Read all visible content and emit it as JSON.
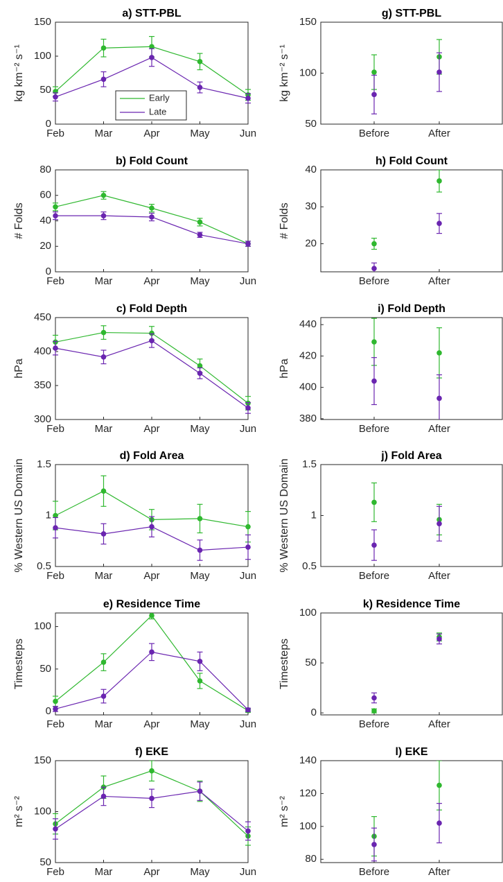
{
  "chart_data": [
    {
      "type": "line",
      "title": "a) STT-PBL",
      "ylabel": "kg km⁻² s⁻¹",
      "categories": [
        "Feb",
        "Mar",
        "Apr",
        "May",
        "Jun"
      ],
      "ylim": [
        0,
        150
      ],
      "yticks": [
        0,
        50,
        100,
        150
      ],
      "legend": "bottom",
      "series": [
        {
          "name": "Early",
          "color": "#2fb82f",
          "values": [
            48,
            112,
            114,
            92,
            43
          ],
          "errors": [
            7,
            13,
            15,
            12,
            8
          ]
        },
        {
          "name": "Late",
          "color": "#6a25b0",
          "values": [
            40,
            66,
            98,
            54,
            38
          ],
          "errors": [
            6,
            11,
            13,
            8,
            7
          ]
        }
      ]
    },
    {
      "type": "line",
      "title": "b) Fold Count",
      "ylabel": "# Folds",
      "categories": [
        "Feb",
        "Mar",
        "Apr",
        "May",
        "Jun"
      ],
      "ylim": [
        0,
        80
      ],
      "yticks": [
        0,
        20,
        40,
        60,
        80
      ],
      "series": [
        {
          "color": "#2fb82f",
          "values": [
            51,
            60,
            50,
            39,
            22
          ],
          "errors": [
            3,
            3,
            3,
            3,
            2
          ]
        },
        {
          "color": "#6a25b0",
          "values": [
            44,
            44,
            43,
            29,
            22
          ],
          "errors": [
            3,
            3,
            3,
            2,
            2
          ]
        }
      ]
    },
    {
      "type": "line",
      "title": "c) Fold Depth",
      "ylabel": "hPa",
      "categories": [
        "Feb",
        "Mar",
        "Apr",
        "May",
        "Jun"
      ],
      "ylim": [
        300,
        450
      ],
      "yticks": [
        300,
        350,
        400,
        450
      ],
      "series": [
        {
          "color": "#2fb82f",
          "values": [
            414,
            428,
            427,
            379,
            324
          ],
          "errors": [
            10,
            10,
            10,
            10,
            10
          ]
        },
        {
          "color": "#6a25b0",
          "values": [
            405,
            392,
            416,
            368,
            317
          ],
          "errors": [
            10,
            10,
            10,
            8,
            8
          ]
        }
      ]
    },
    {
      "type": "line",
      "title": "d) Fold Area",
      "ylabel": "% Western US Domain",
      "categories": [
        "Feb",
        "Mar",
        "Apr",
        "May",
        "Jun"
      ],
      "ylim": [
        0.5,
        1.5
      ],
      "yticks": [
        0.5,
        1,
        1.5
      ],
      "series": [
        {
          "color": "#2fb82f",
          "values": [
            1.0,
            1.24,
            0.96,
            0.97,
            0.89
          ],
          "errors": [
            0.14,
            0.15,
            0.1,
            0.14,
            0.15
          ]
        },
        {
          "color": "#6a25b0",
          "values": [
            0.88,
            0.82,
            0.89,
            0.66,
            0.69
          ],
          "errors": [
            0.1,
            0.1,
            0.1,
            0.1,
            0.12
          ]
        }
      ]
    },
    {
      "type": "line",
      "title": "e) Residence Time",
      "ylabel": "Timesteps",
      "categories": [
        "Feb",
        "Mar",
        "Apr",
        "May",
        "Jun"
      ],
      "ylim": [
        -4,
        116
      ],
      "yticks": [
        0,
        50,
        100
      ],
      "series": [
        {
          "color": "#2fb82f",
          "values": [
            12,
            58,
            113,
            36,
            1
          ],
          "errors": [
            6,
            10,
            4,
            9,
            2
          ]
        },
        {
          "color": "#6a25b0",
          "values": [
            3,
            18,
            70,
            59,
            2
          ],
          "errors": [
            3,
            8,
            10,
            11,
            2
          ]
        }
      ]
    },
    {
      "type": "line",
      "title": "f) EKE",
      "ylabel": "m² s⁻²",
      "categories": [
        "Feb",
        "Mar",
        "Apr",
        "May",
        "Jun"
      ],
      "ylim": [
        50,
        150
      ],
      "yticks": [
        50,
        100,
        150
      ],
      "series": [
        {
          "color": "#2fb82f",
          "values": [
            88,
            124,
            140,
            120,
            76
          ],
          "errors": [
            10,
            11,
            10,
            10,
            9
          ]
        },
        {
          "color": "#6a25b0",
          "values": [
            83,
            115,
            113,
            120,
            81
          ],
          "errors": [
            10,
            9,
            9,
            9,
            9
          ]
        }
      ]
    },
    {
      "type": "errorbar",
      "title": "g) STT-PBL",
      "ylabel": "kg km⁻² s⁻¹",
      "categories": [
        "Before",
        "After"
      ],
      "ylim": [
        50,
        150
      ],
      "yticks": [
        50,
        100,
        150
      ],
      "series": [
        {
          "color": "#2fb82f",
          "values": [
            101,
            116
          ],
          "errors": [
            17,
            17
          ]
        },
        {
          "color": "#6a25b0",
          "values": [
            79,
            101
          ],
          "errors": [
            19,
            19
          ]
        }
      ]
    },
    {
      "type": "errorbar",
      "title": "h) Fold Count",
      "ylabel": "# Folds",
      "categories": [
        "Before",
        "After"
      ],
      "ylim": [
        12.4,
        40
      ],
      "yticks": [
        20,
        30,
        40
      ],
      "series": [
        {
          "color": "#2fb82f",
          "values": [
            20,
            37
          ],
          "errors": [
            1.5,
            3
          ]
        },
        {
          "color": "#6a25b0",
          "values": [
            13.3,
            25.5
          ],
          "errors": [
            1.5,
            2.7
          ]
        }
      ]
    },
    {
      "type": "errorbar",
      "title": "i) Fold Depth",
      "ylabel": "hPa",
      "categories": [
        "Before",
        "After"
      ],
      "ylim": [
        379.5,
        444.5
      ],
      "yticks": [
        380,
        400,
        420,
        440
      ],
      "series": [
        {
          "color": "#2fb82f",
          "values": [
            429,
            422
          ],
          "errors": [
            15,
            16
          ]
        },
        {
          "color": "#6a25b0",
          "values": [
            404,
            393
          ],
          "errors": [
            15,
            15
          ]
        }
      ]
    },
    {
      "type": "errorbar",
      "title": "j) Fold Area",
      "ylabel": "% Western US Domain",
      "categories": [
        "Before",
        "After"
      ],
      "ylim": [
        0.5,
        1.5
      ],
      "yticks": [
        0.5,
        1,
        1.5
      ],
      "series": [
        {
          "color": "#2fb82f",
          "values": [
            1.13,
            0.96
          ],
          "errors": [
            0.19,
            0.15
          ]
        },
        {
          "color": "#6a25b0",
          "values": [
            0.71,
            0.92
          ],
          "errors": [
            0.15,
            0.17
          ]
        }
      ]
    },
    {
      "type": "errorbar",
      "title": "k) Residence Time",
      "ylabel": "Timesteps",
      "categories": [
        "Before",
        "After"
      ],
      "ylim": [
        -2,
        100
      ],
      "yticks": [
        0,
        50,
        100
      ],
      "series": [
        {
          "color": "#2fb82f",
          "values": [
            2,
            76
          ],
          "errors": [
            2,
            4
          ]
        },
        {
          "color": "#6a25b0",
          "values": [
            15,
            74
          ],
          "errors": [
            5,
            5
          ]
        }
      ]
    },
    {
      "type": "errorbar",
      "title": "l) EKE",
      "ylabel": "m² s⁻²",
      "categories": [
        "Before",
        "After"
      ],
      "ylim": [
        78,
        140
      ],
      "yticks": [
        80,
        100,
        120,
        140
      ],
      "series": [
        {
          "color": "#2fb82f",
          "values": [
            94,
            125
          ],
          "errors": [
            12,
            15
          ]
        },
        {
          "color": "#6a25b0",
          "values": [
            89,
            102
          ],
          "errors": [
            10,
            12
          ]
        }
      ]
    }
  ]
}
